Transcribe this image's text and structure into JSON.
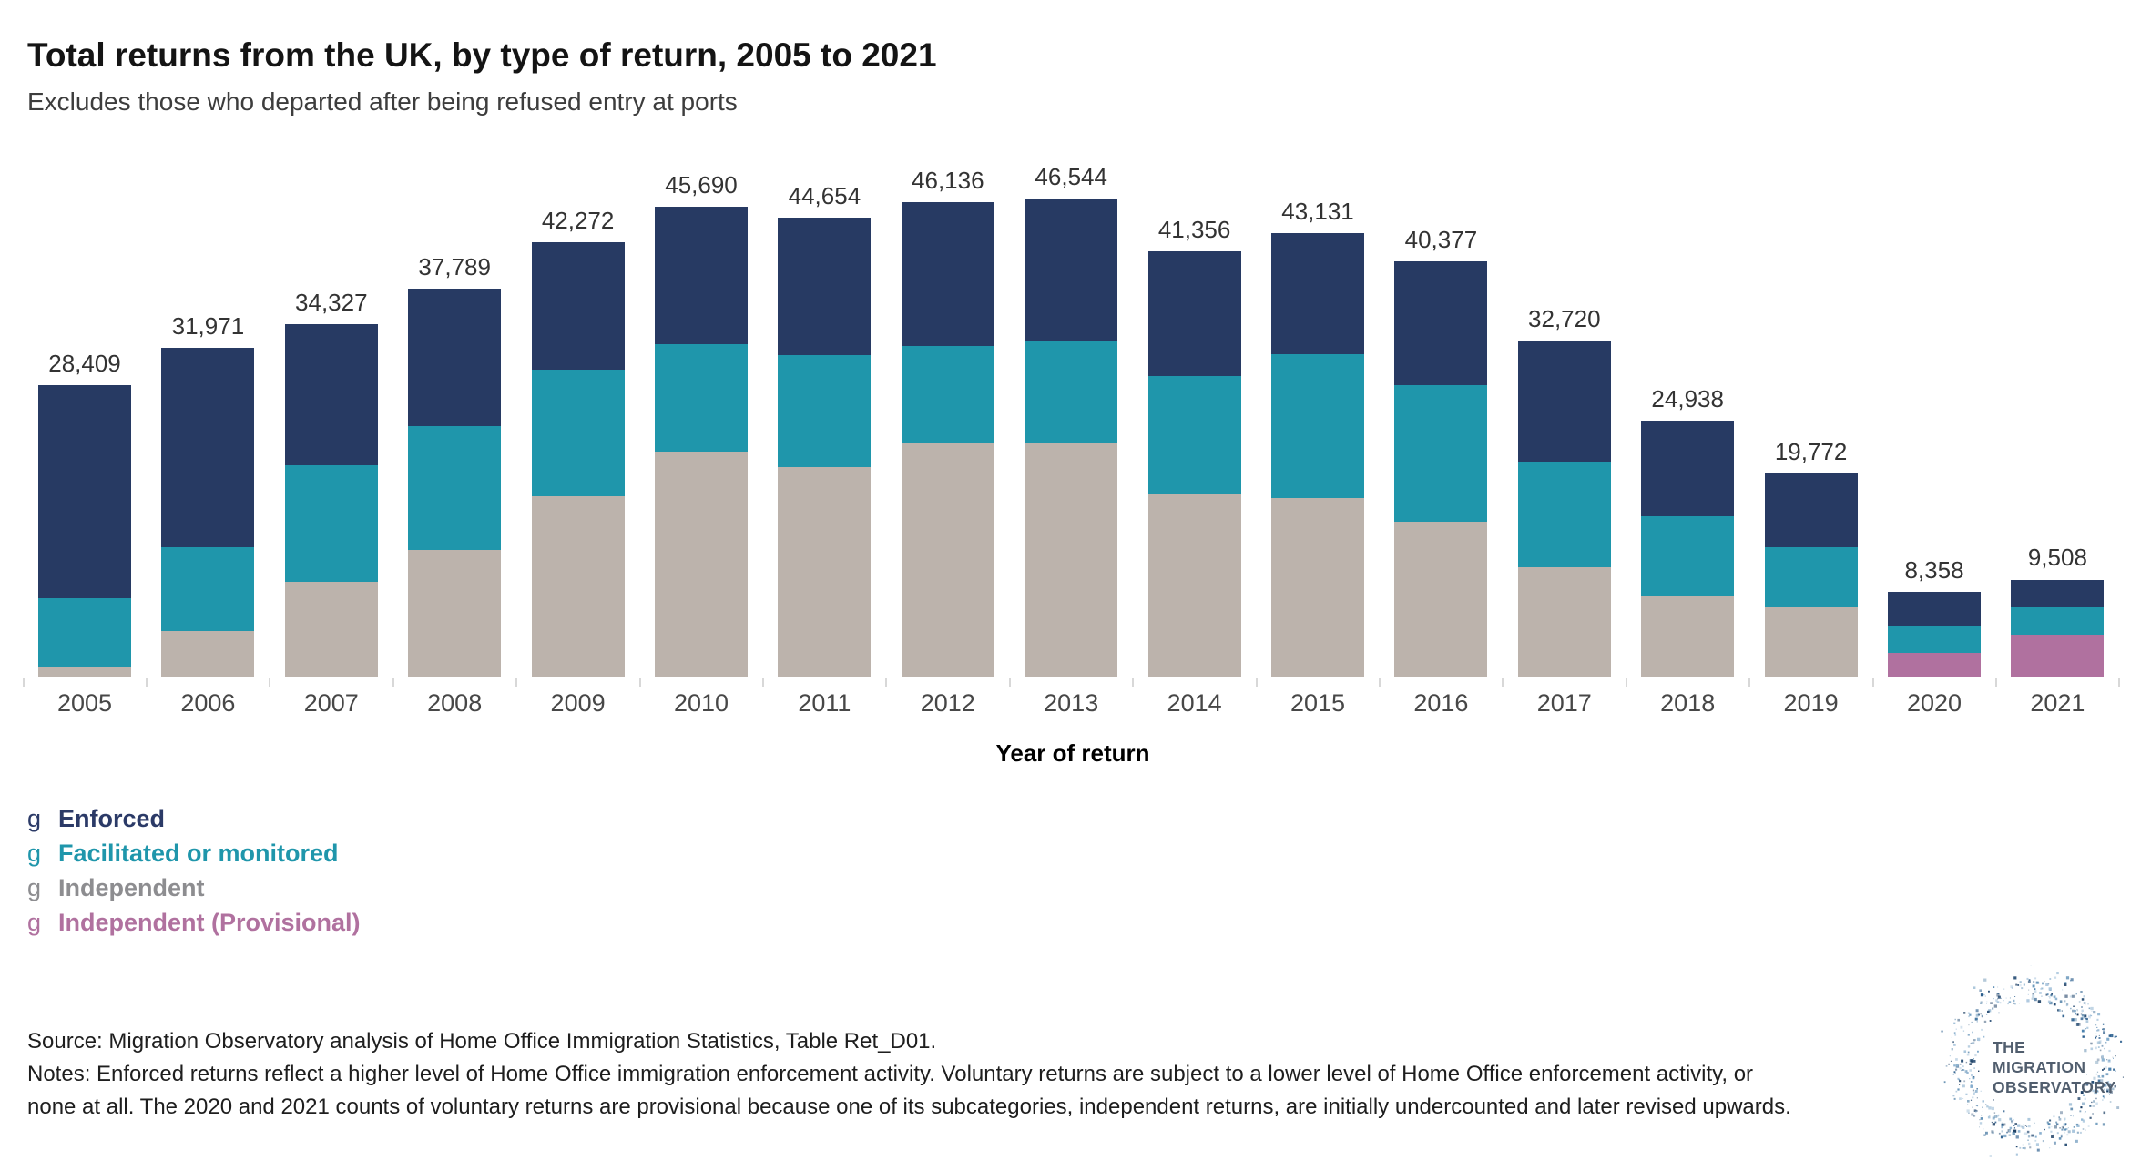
{
  "title": "Total returns from the UK, by type of return, 2005 to 2021",
  "subtitle": "Excludes those who departed after being refused entry at ports",
  "chart_data": {
    "type": "bar",
    "stacked": true,
    "title": "Total returns from the UK, by type of return, 2005 to 2021",
    "subtitle": "Excludes those who departed after being refused entry at ports",
    "xlabel": "Year of return",
    "ylabel": "",
    "y_axis": "hidden",
    "ylim": [
      0,
      47000
    ],
    "grid": false,
    "legend_position": "bottom-left",
    "categories": [
      "2005",
      "2006",
      "2007",
      "2008",
      "2009",
      "2010",
      "2011",
      "2012",
      "2013",
      "2014",
      "2015",
      "2016",
      "2017",
      "2018",
      "2019",
      "2020",
      "2021"
    ],
    "totals": [
      28409,
      31971,
      34327,
      37789,
      42272,
      45690,
      44654,
      46136,
      46544,
      41356,
      43131,
      40377,
      32720,
      24938,
      19772,
      8358,
      9508
    ],
    "total_labels": [
      "28,409",
      "31,971",
      "34,327",
      "37,789",
      "42,272",
      "45,690",
      "44,654",
      "46,136",
      "46,544",
      "41,356",
      "43,131",
      "40,377",
      "32,720",
      "24,938",
      "19,772",
      "8,358",
      "9,508"
    ],
    "series": [
      {
        "name": "Enforced",
        "color": "#273a63",
        "values": [
          20700,
          19280,
          13730,
          13400,
          12420,
          13340,
          13320,
          13970,
          13790,
          12090,
          11700,
          11960,
          11720,
          9320,
          7110,
          3300,
          2680
        ]
      },
      {
        "name": "Facilitated or monitored",
        "color": "#1f96ab",
        "values": [
          6700,
          8150,
          11280,
          12010,
          12250,
          10430,
          10930,
          9390,
          9900,
          11370,
          14030,
          13330,
          10300,
          7670,
          5850,
          2680,
          2680
        ]
      },
      {
        "name": "Independent",
        "color": "#bcb3ac",
        "values": [
          1009,
          4541,
          9317,
          12379,
          17602,
          21920,
          20404,
          22776,
          22854,
          17896,
          17401,
          15087,
          10700,
          7948,
          6812,
          0,
          0
        ]
      },
      {
        "name": "Independent (Provisional)",
        "color": "#b0719f",
        "values": [
          0,
          0,
          0,
          0,
          0,
          0,
          0,
          0,
          0,
          0,
          0,
          0,
          0,
          0,
          0,
          2378,
          4148
        ]
      }
    ]
  },
  "legend": {
    "marker_glyph": "g",
    "items": [
      {
        "label": "Enforced",
        "color": "#2b3a67"
      },
      {
        "label": "Facilitated or monitored",
        "color": "#1f96ab"
      },
      {
        "label": "Independent",
        "color": "#8d8d90"
      },
      {
        "label": "Independent (Provisional)",
        "color": "#b0719f"
      }
    ]
  },
  "footer": {
    "source": "Source: Migration Observatory analysis of Home Office Immigration Statistics, Table Ret_D01.",
    "notes_line1": "Notes: Enforced returns reflect a higher level of Home Office immigration enforcement activity. Voluntary returns are subject to a lower level of Home Office enforcement activity, or",
    "notes_line2": "none at all. The 2020 and 2021 counts of voluntary returns are provisional because one of its subcategories, independent returns, are initially undercounted and later revised upwards."
  },
  "logo": {
    "line1": "THE",
    "line2": "MIGRATION",
    "line3": "OBSERVATORY"
  }
}
